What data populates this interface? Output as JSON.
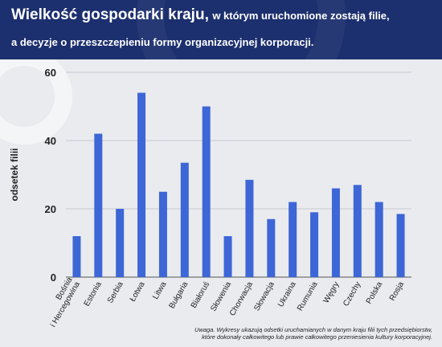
{
  "header": {
    "title_main": "Wielkość gospodarki kraju,",
    "title_rest": "w którym uruchomione zostają filie,",
    "title_line2": "a decyzje o przeszczepieniu formy organizacyjnej korporacji."
  },
  "footnote": {
    "line1": "Uwaga. Wykresy ukazują odsetki uruchamianych w danym kraju filii tych przedsiębiorstw,",
    "line2": "które dokonały całkowitego lub prawie całkowitego przeniesienia kultury korporacyjnej."
  },
  "colors": {
    "bar": "#3d66d6",
    "header_bg": "#1c2f6e",
    "background": "#e9ebef"
  },
  "chart_data": {
    "type": "bar",
    "title": "",
    "xlabel": "",
    "ylabel": "odsetek filii",
    "ylim": [
      0,
      60
    ],
    "yticks": [
      0,
      20,
      40,
      60
    ],
    "grid": true,
    "categories": [
      "Bośnia i Hercegowina",
      "Estonia",
      "Serbia",
      "Łotwa",
      "Litwa",
      "Bułgaria",
      "Białoruś",
      "Słowenia",
      "Chorwacja",
      "Słowacja",
      "Ukraina",
      "Rumunia",
      "Węgry",
      "Czechy",
      "Polska",
      "Rosja"
    ],
    "values": [
      12,
      42,
      20,
      54,
      25,
      33.5,
      50,
      12,
      28.5,
      17,
      22,
      19,
      26,
      27,
      22,
      18.5
    ]
  }
}
